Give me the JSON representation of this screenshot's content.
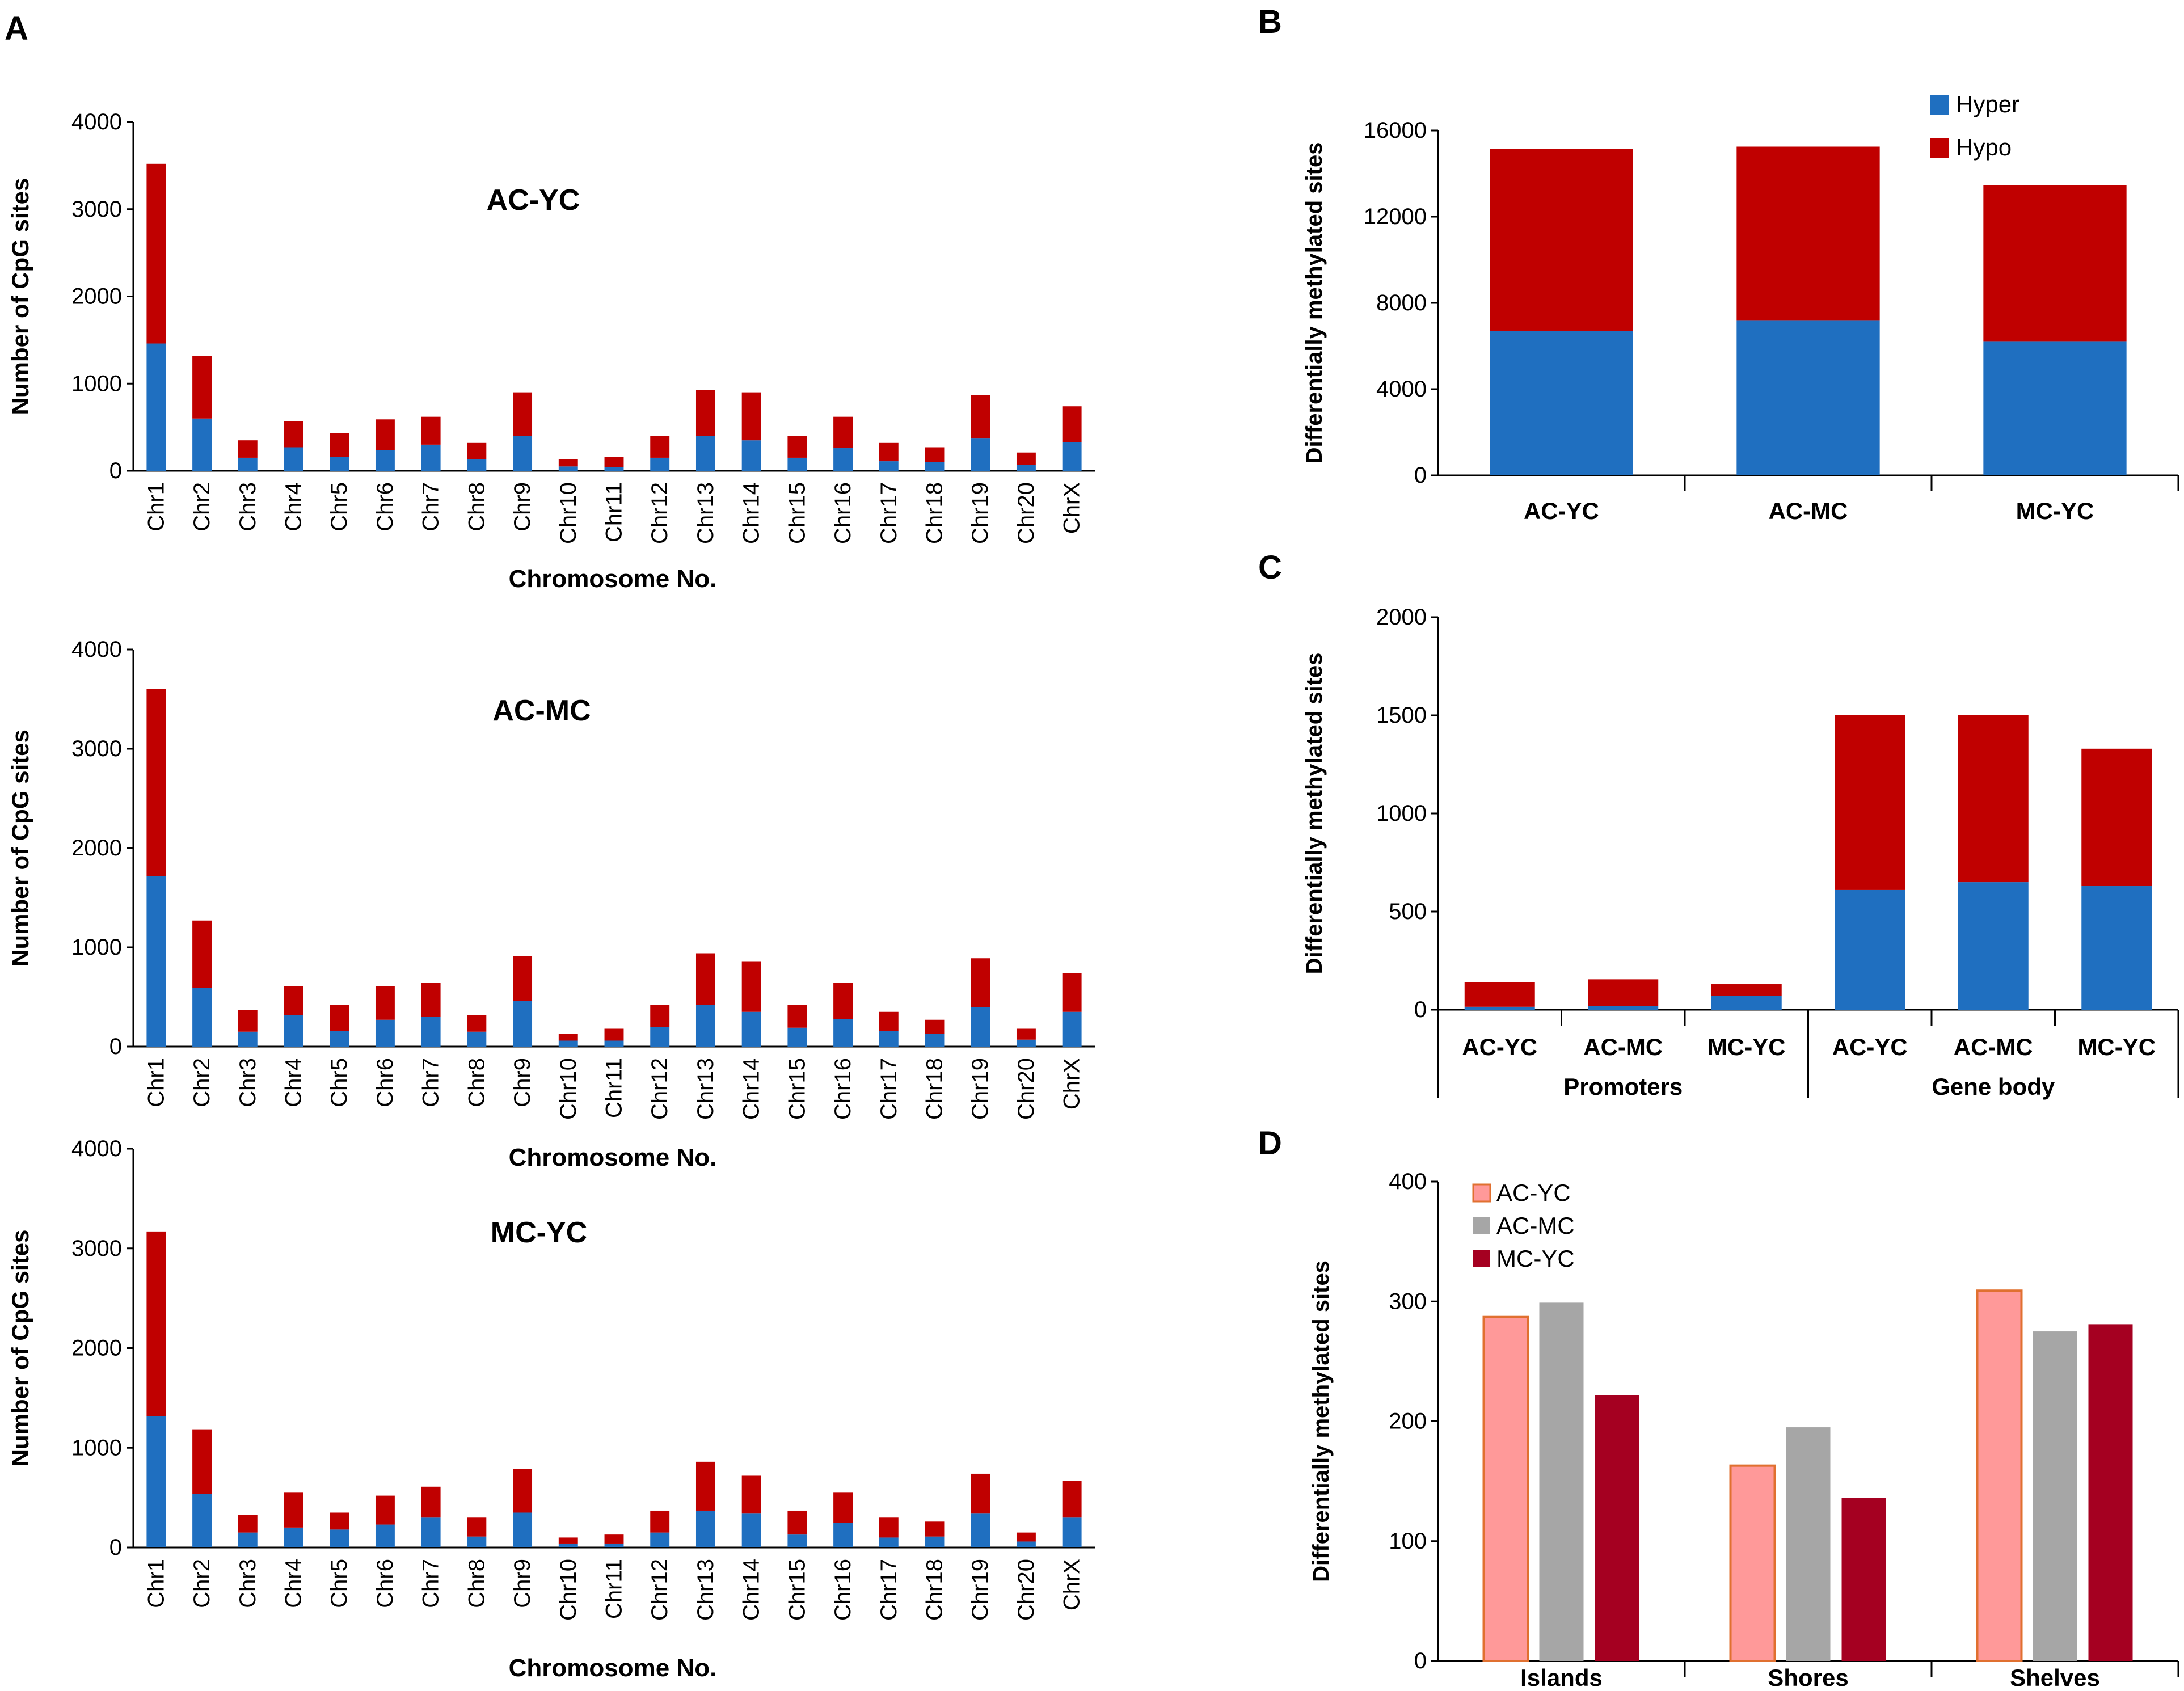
{
  "colors": {
    "hyper": "#1f6fc0",
    "hypo": "#c00000",
    "ac_yc": "#ff9999",
    "ac_yc_edge": "#e07030",
    "ac_mc": "#a6a6a6",
    "mc_yc": "#a50021",
    "axis": "#000000"
  },
  "panel_labels": [
    "A",
    "B",
    "C",
    "D"
  ],
  "chart_data": [
    {
      "id": "A1",
      "type": "bar",
      "stacked": true,
      "title": "AC-YC",
      "ylabel": "Number of CpG sites",
      "xlabel": "Chromosome No.",
      "ylim": [
        0,
        4000
      ],
      "yticks": [
        "0",
        "1000",
        "2000",
        "3000",
        "4000"
      ],
      "categories": [
        "Chr1",
        "Chr2",
        "Chr3",
        "Chr4",
        "Chr5",
        "Chr6",
        "Chr7",
        "Chr8",
        "Chr9",
        "Chr10",
        "Chr11",
        "Chr12",
        "Chr13",
        "Chr14",
        "Chr15",
        "Chr16",
        "Chr17",
        "Chr18",
        "Chr19",
        "Chr20",
        "ChrX"
      ],
      "series": [
        {
          "name": "Hyper",
          "values": [
            1460,
            600,
            150,
            270,
            160,
            240,
            300,
            130,
            400,
            50,
            40,
            150,
            400,
            350,
            150,
            260,
            110,
            100,
            370,
            70,
            330
          ]
        },
        {
          "name": "Hypo",
          "values": [
            2060,
            720,
            200,
            300,
            270,
            350,
            320,
            190,
            500,
            80,
            120,
            250,
            530,
            550,
            250,
            360,
            210,
            170,
            500,
            140,
            410
          ]
        }
      ]
    },
    {
      "id": "A2",
      "type": "bar",
      "stacked": true,
      "title": "AC-MC",
      "ylabel": "Number of CpG sites",
      "xlabel": "Chromosome No.",
      "ylim": [
        0,
        4000
      ],
      "yticks": [
        "0",
        "1000",
        "2000",
        "3000",
        "4000"
      ],
      "categories": [
        "Chr1",
        "Chr2",
        "Chr3",
        "Chr4",
        "Chr5",
        "Chr6",
        "Chr7",
        "Chr8",
        "Chr9",
        "Chr10",
        "Chr11",
        "Chr12",
        "Chr13",
        "Chr14",
        "Chr15",
        "Chr16",
        "Chr17",
        "Chr18",
        "Chr19",
        "Chr20",
        "ChrX"
      ],
      "series": [
        {
          "name": "Hyper",
          "values": [
            1720,
            590,
            150,
            320,
            160,
            270,
            300,
            150,
            460,
            60,
            60,
            200,
            420,
            350,
            190,
            280,
            160,
            130,
            400,
            70,
            350
          ]
        },
        {
          "name": "Hypo",
          "values": [
            1880,
            680,
            220,
            290,
            260,
            340,
            340,
            170,
            450,
            70,
            120,
            220,
            520,
            510,
            230,
            360,
            190,
            140,
            490,
            110,
            390
          ]
        }
      ]
    },
    {
      "id": "A3",
      "type": "bar",
      "stacked": true,
      "title": "MC-YC",
      "ylabel": "Number of CpG sites",
      "xlabel": "Chromosome No.",
      "ylim": [
        0,
        4000
      ],
      "yticks": [
        "0",
        "1000",
        "2000",
        "3000",
        "4000"
      ],
      "categories": [
        "Chr1",
        "Chr2",
        "Chr3",
        "Chr4",
        "Chr5",
        "Chr6",
        "Chr7",
        "Chr8",
        "Chr9",
        "Chr10",
        "Chr11",
        "Chr12",
        "Chr13",
        "Chr14",
        "Chr15",
        "Chr16",
        "Chr17",
        "Chr18",
        "Chr19",
        "Chr20",
        "ChrX"
      ],
      "series": [
        {
          "name": "Hyper",
          "values": [
            1320,
            540,
            150,
            200,
            180,
            230,
            300,
            110,
            350,
            40,
            40,
            150,
            370,
            340,
            130,
            250,
            100,
            110,
            340,
            60,
            300
          ]
        },
        {
          "name": "Hypo",
          "values": [
            1850,
            640,
            180,
            350,
            170,
            290,
            310,
            190,
            440,
            60,
            90,
            220,
            490,
            380,
            240,
            300,
            200,
            150,
            400,
            90,
            370
          ]
        }
      ]
    },
    {
      "id": "B",
      "type": "bar",
      "stacked": true,
      "ylabel": "Differentially methylated sites",
      "xlabel": "",
      "ylim": [
        0,
        16000
      ],
      "yticks": [
        "0",
        "4000",
        "8000",
        "12000",
        "16000"
      ],
      "categories": [
        "AC-YC",
        "AC-MC",
        "MC-YC"
      ],
      "legend": [
        "Hyper",
        "Hypo"
      ],
      "series": [
        {
          "name": "Hyper",
          "values": [
            6700,
            7200,
            6200
          ]
        },
        {
          "name": "Hypo",
          "values": [
            8450,
            8050,
            7250
          ]
        }
      ]
    },
    {
      "id": "C",
      "type": "bar",
      "stacked": true,
      "ylabel": "Differentially methylated sites",
      "xlabel": "",
      "ylim": [
        0,
        2000
      ],
      "yticks": [
        "0",
        "500",
        "1000",
        "1500",
        "2000"
      ],
      "categories": [
        "AC-YC",
        "AC-MC",
        "MC-YC",
        "AC-YC",
        "AC-MC",
        "MC-YC"
      ],
      "groups": [
        "Promoters",
        "Gene body"
      ],
      "series": [
        {
          "name": "Hyper",
          "values": [
            15,
            20,
            70,
            610,
            650,
            630
          ]
        },
        {
          "name": "Hypo",
          "values": [
            125,
            135,
            60,
            890,
            850,
            700
          ]
        }
      ]
    },
    {
      "id": "D",
      "type": "bar",
      "stacked": false,
      "ylabel": "Differentially methylated sites",
      "xlabel": "",
      "ylim": [
        0,
        400
      ],
      "yticks": [
        "0",
        "100",
        "200",
        "300",
        "400"
      ],
      "categories": [
        "Islands",
        "Shores",
        "Shelves"
      ],
      "legend": [
        "AC-YC",
        "AC-MC",
        "MC-YC"
      ],
      "series": [
        {
          "name": "AC-YC",
          "values": [
            287,
            163,
            309
          ]
        },
        {
          "name": "AC-MC",
          "values": [
            299,
            195,
            275
          ]
        },
        {
          "name": "MC-YC",
          "values": [
            222,
            136,
            281
          ]
        }
      ]
    }
  ]
}
